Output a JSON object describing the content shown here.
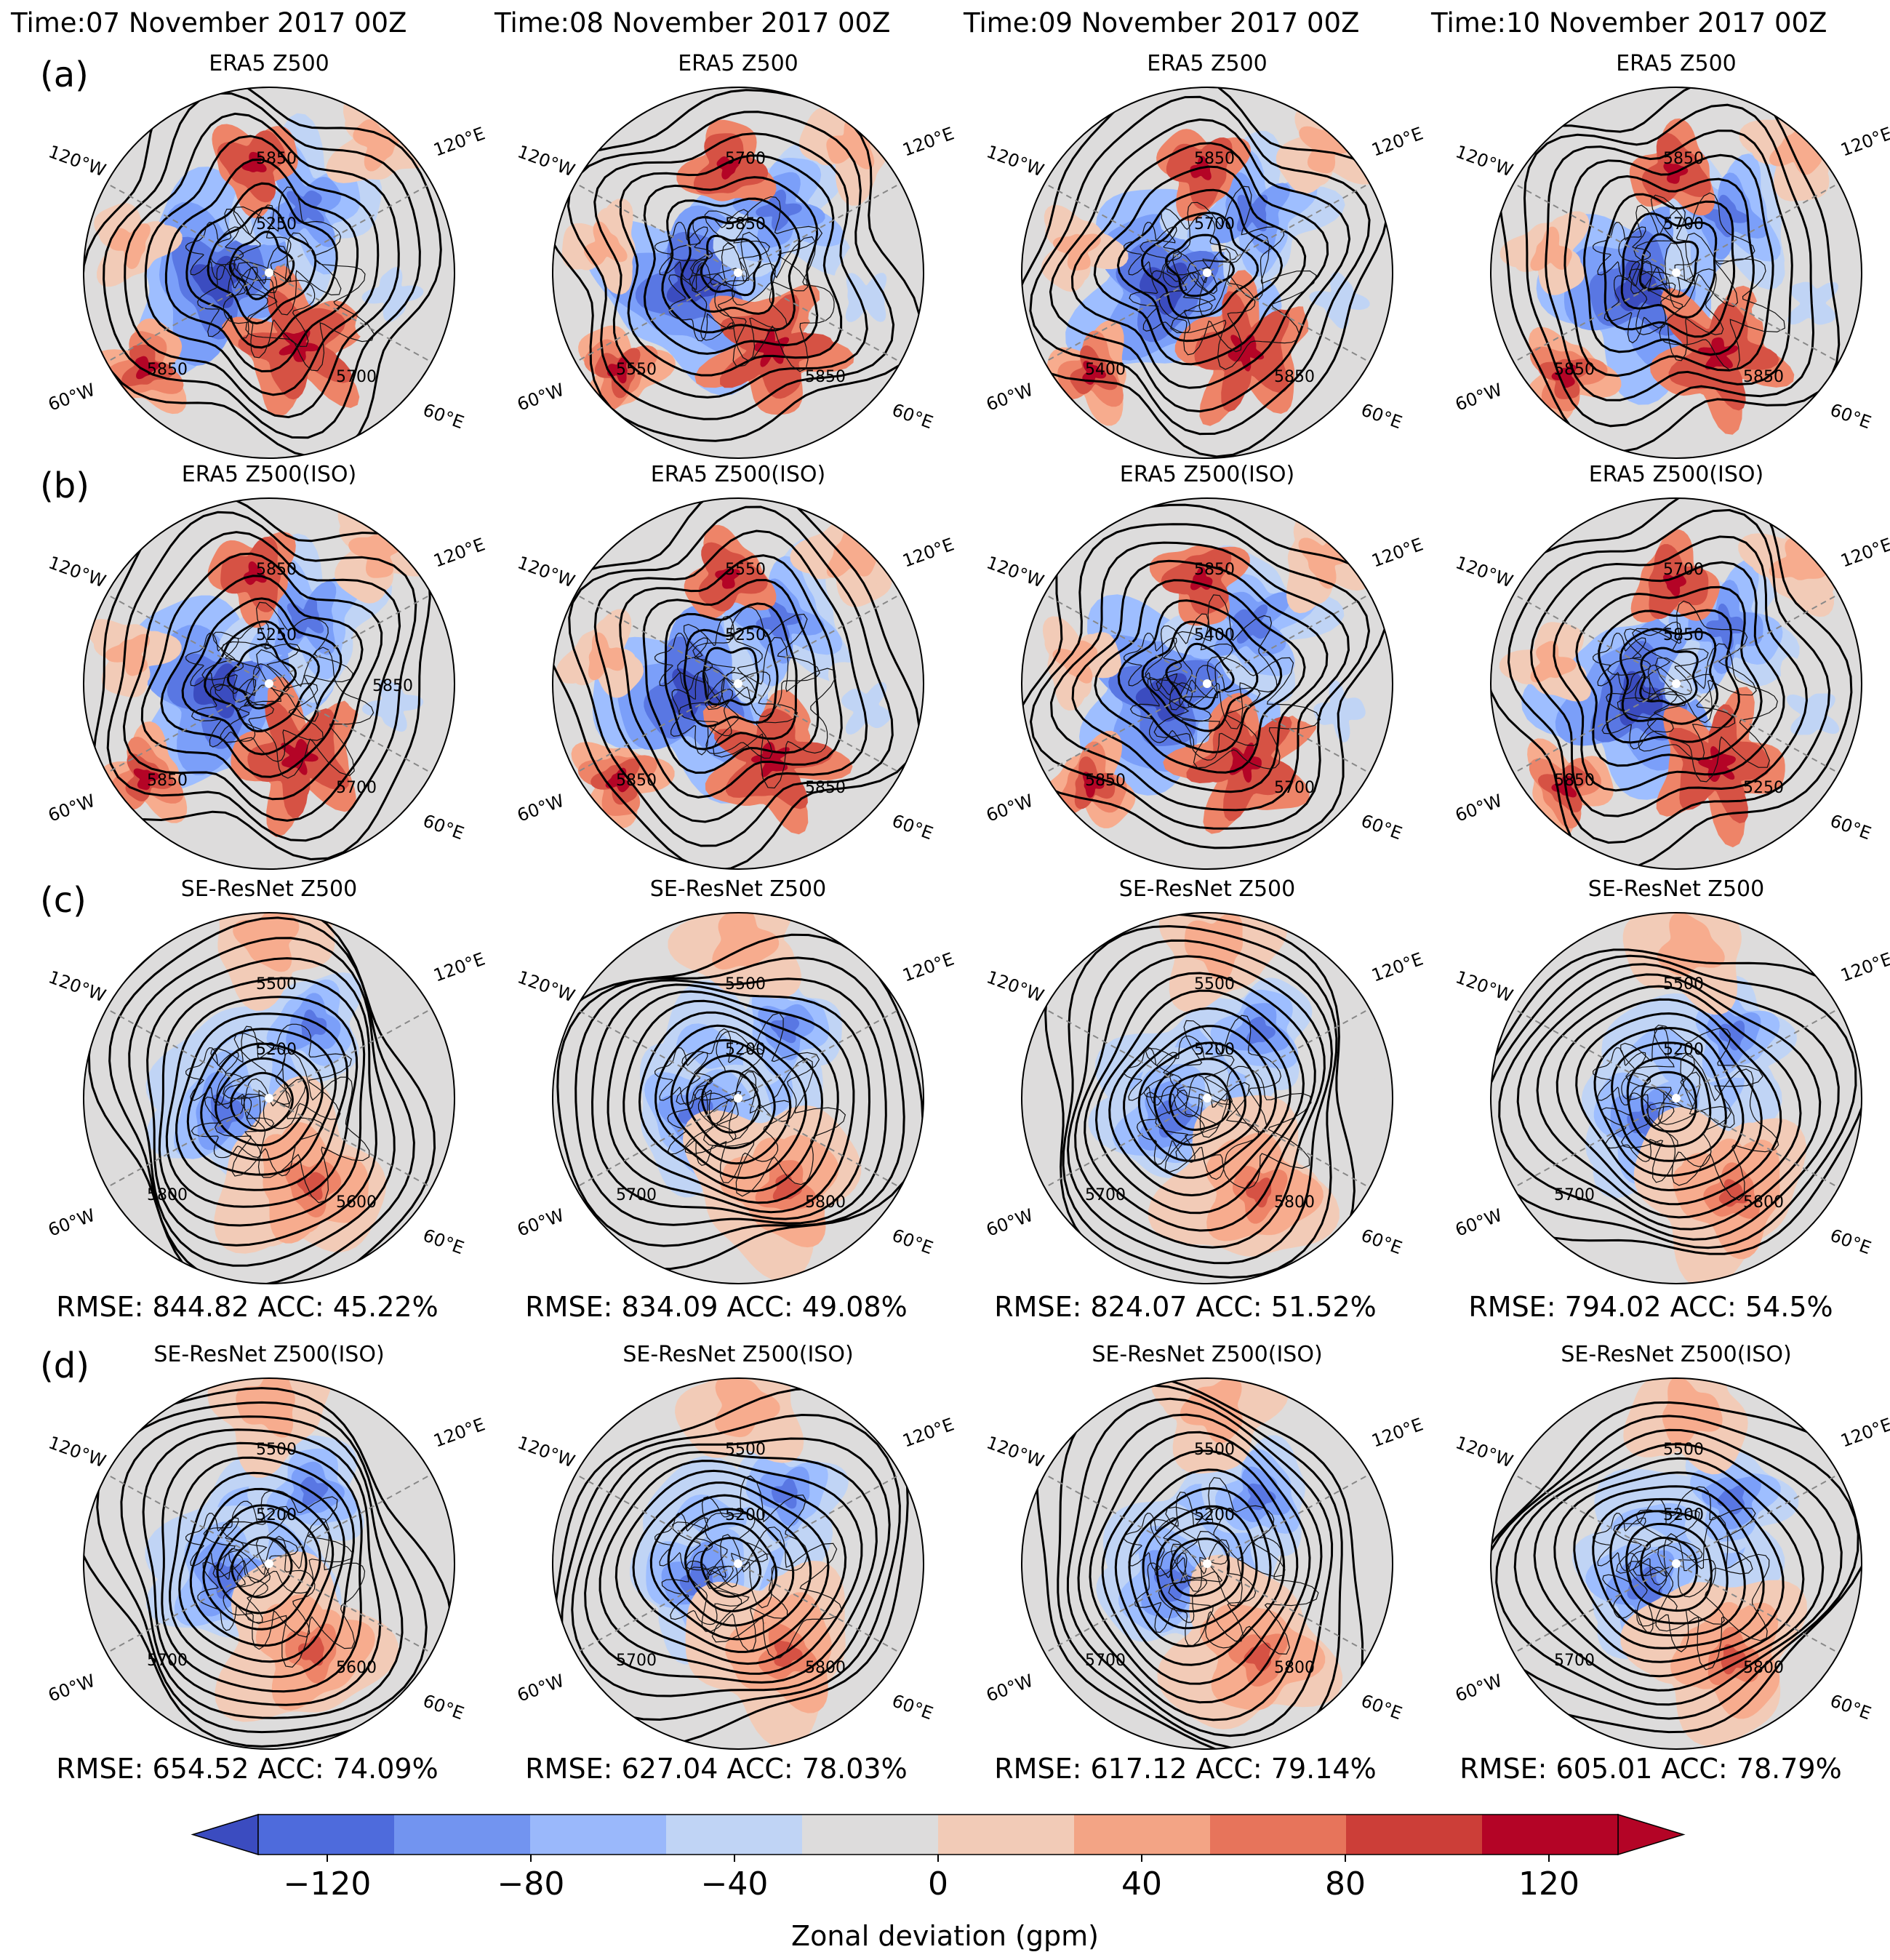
{
  "columns": [
    {
      "time": "Time:07 November 2017 00Z"
    },
    {
      "time": "Time:08 November 2017 00Z"
    },
    {
      "time": "Time:09 November 2017 00Z"
    },
    {
      "time": "Time:10 November 2017 00Z"
    }
  ],
  "rows": [
    {
      "label": "(a)",
      "title": "ERA5 Z500"
    },
    {
      "label": "(b)",
      "title": "ERA5 Z500(ISO)"
    },
    {
      "label": "(c)",
      "title": "SE-ResNet Z500"
    },
    {
      "label": "(d)",
      "title": "SE-ResNet Z500(ISO)"
    }
  ],
  "lon_labels": {
    "ul": "120°W",
    "ur": "120°E",
    "ll": "60°W",
    "lr": "60°E"
  },
  "metrics": {
    "c": [
      {
        "text": "RMSE: 844.82  ACC: 45.22%"
      },
      {
        "text": "RMSE: 834.09  ACC: 49.08%"
      },
      {
        "text": "RMSE: 824.07  ACC: 51.52%"
      },
      {
        "text": "RMSE: 794.02  ACC: 54.5%"
      }
    ],
    "d": [
      {
        "text": "RMSE: 654.52  ACC: 74.09%"
      },
      {
        "text": "RMSE: 627.04  ACC: 78.03%"
      },
      {
        "text": "RMSE: 617.12  ACC: 79.14%"
      },
      {
        "text": "RMSE: 605.01  ACC: 78.79%"
      }
    ]
  },
  "contour_labels": {
    "a": [
      [
        "5850",
        "5250",
        "5850",
        "5700"
      ],
      [
        "5700",
        "5850",
        "5550",
        "5850"
      ],
      [
        "5850",
        "5700",
        "5400",
        "5850"
      ],
      [
        "5850",
        "5700",
        "5850",
        "5850"
      ]
    ],
    "b": [
      [
        "5850",
        "5250",
        "5850",
        "5700",
        "5850"
      ],
      [
        "5550",
        "5250",
        "5850",
        "5850"
      ],
      [
        "5850",
        "5400",
        "5850",
        "5700"
      ],
      [
        "5700",
        "5850",
        "5850",
        "5250"
      ]
    ],
    "c": [
      [
        "5500",
        "5200",
        "5800",
        "5600"
      ],
      [
        "5500",
        "5200",
        "5700",
        "5800"
      ],
      [
        "5500",
        "5200",
        "5700",
        "5800"
      ],
      [
        "5500",
        "5200",
        "5700",
        "5800"
      ]
    ],
    "d": [
      [
        "5500",
        "5200",
        "5700",
        "5600"
      ],
      [
        "5500",
        "5200",
        "5700",
        "5800"
      ],
      [
        "5500",
        "5200",
        "5700",
        "5800"
      ],
      [
        "5500",
        "5200",
        "5700",
        "5800"
      ]
    ]
  },
  "chart_data": {
    "type": "heatmap",
    "description_type": "polar stereographic maps of 500 hPa geopotential height",
    "colorbar": {
      "label": "Zonal deviation (gpm)",
      "ticks": [
        -120,
        -80,
        -40,
        0,
        40,
        80,
        120
      ],
      "boundaries": [
        -140,
        -100,
        -60,
        -20,
        20,
        60,
        100,
        140
      ],
      "bins": [
        {
          "from": -140,
          "to": -120,
          "color": "#3b4cc0"
        },
        {
          "from": -120,
          "to": -100,
          "color": "#5977e3"
        },
        {
          "from": -100,
          "to": -80,
          "color": "#7b9ff9"
        },
        {
          "from": -80,
          "to": -60,
          "color": "#9ebeff"
        },
        {
          "from": -60,
          "to": -40,
          "color": "#c0d4f5"
        },
        {
          "from": -40,
          "to": -20,
          "color": "#dddcdc"
        },
        {
          "from": -20,
          "to": 20,
          "color": "#dddcdc"
        },
        {
          "from": 20,
          "to": 40,
          "color": "#f2cbb7"
        },
        {
          "from": 40,
          "to": 60,
          "color": "#f7ac8e"
        },
        {
          "from": 60,
          "to": 80,
          "color": "#ee8468"
        },
        {
          "from": 80,
          "to": 120,
          "color": "#d65244"
        },
        {
          "from": 120,
          "to": 140,
          "color": "#b40426"
        }
      ],
      "extend": "both"
    },
    "panels": [
      {
        "row": "a",
        "field": "ERA5 Z500",
        "times": [
          "07 Nov 2017 00Z",
          "08 Nov 2017 00Z",
          "09 Nov 2017 00Z",
          "10 Nov 2017 00Z"
        ]
      },
      {
        "row": "b",
        "field": "ERA5 Z500(ISO)",
        "times": [
          "07 Nov 2017 00Z",
          "08 Nov 2017 00Z",
          "09 Nov 2017 00Z",
          "10 Nov 2017 00Z"
        ]
      },
      {
        "row": "c",
        "field": "SE-ResNet Z500",
        "rmse": [
          844.82,
          834.09,
          824.07,
          794.02
        ],
        "acc_percent": [
          45.22,
          49.08,
          51.52,
          54.5
        ]
      },
      {
        "row": "d",
        "field": "SE-ResNet Z500(ISO)",
        "rmse": [
          654.52,
          627.04,
          617.12,
          605.01
        ],
        "acc_percent": [
          74.09,
          78.03,
          79.14,
          78.79
        ]
      }
    ]
  }
}
